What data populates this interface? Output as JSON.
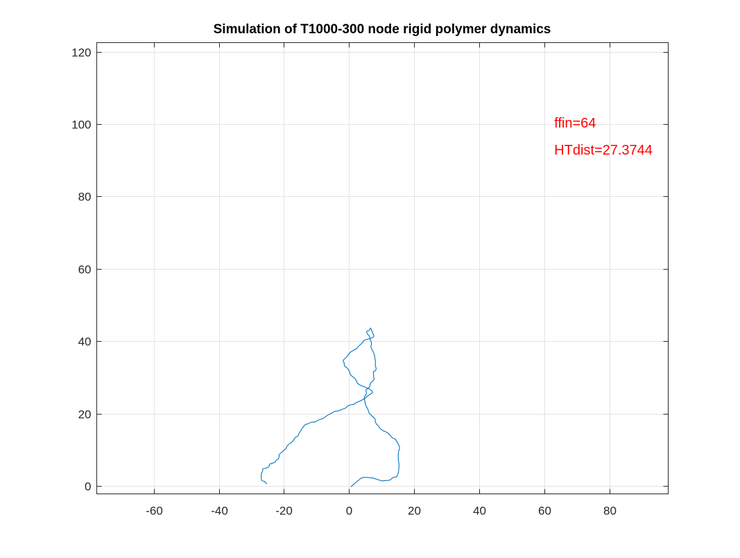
{
  "chart_data": {
    "type": "line",
    "title": "Simulation of T1000-300 node rigid polymer dynamics",
    "xlabel": "",
    "ylabel": "",
    "xlim": [
      -77.5,
      98
    ],
    "ylim": [
      -2.2,
      122.5
    ],
    "xticks": [
      -60,
      -40,
      -20,
      0,
      20,
      40,
      60,
      80
    ],
    "yticks": [
      0,
      20,
      40,
      60,
      80,
      100,
      120
    ],
    "grid": true,
    "colors": {
      "series": "#0072BD",
      "annotation": "#FF0000",
      "grid": "#E3E3E3",
      "axis": "#262626"
    },
    "annotations": [
      {
        "text": "ffin=64",
        "x": 63,
        "y": 100
      },
      {
        "text": "HTdist=27.3744",
        "x": 63,
        "y": 92.6
      }
    ],
    "series": [
      {
        "name": "",
        "x": [
          0.6,
          2.5,
          3.6,
          6,
          8.6,
          10,
          12.5,
          14.6,
          15.3,
          15.1,
          15.5,
          14.4,
          14.2,
          11.6,
          9.5,
          8.5,
          8.0,
          6.2,
          4.8,
          5.2,
          7.6,
          7.5,
          8.3,
          8.1,
          7.8,
          6.7,
          6.8,
          6.3,
          5.4,
          6.6,
          7.6,
          4.5,
          2.9,
          1.2,
          -0.2,
          -1.8,
          -1.4,
          0.2,
          1.1,
          2.3,
          3.5,
          6.2,
          7.2,
          5.1,
          3.0,
          1.6,
          -0.4,
          -2.1,
          -4.4,
          -6.7,
          -9.4,
          -11.6,
          -13.5,
          -15.1,
          -15.7,
          -17.1,
          -18.8,
          -19.6,
          -21.4,
          -21.7,
          -22.7,
          -24.4,
          -24.7,
          -26.5,
          -26.9,
          -26.8,
          -25.3
        ],
        "y": [
          -0.2,
          1.3,
          2.1,
          2.3,
          1.8,
          1.4,
          1.6,
          2.6,
          5.2,
          8.4,
          10.5,
          12.6,
          12.9,
          14.8,
          15.9,
          17.0,
          18.4,
          20.1,
          23.5,
          26.5,
          29.3,
          31.6,
          32.4,
          34.4,
          36.1,
          38.4,
          39.8,
          41.3,
          42.7,
          43.6,
          41.3,
          40.1,
          38.6,
          37.4,
          36.3,
          34.7,
          33.2,
          31.4,
          30.2,
          28.9,
          27.8,
          26.8,
          25.8,
          24.4,
          23.3,
          22.6,
          22.1,
          21.2,
          20.6,
          19.5,
          18.2,
          17.6,
          16.9,
          14.9,
          13.8,
          12.6,
          11.3,
          10.2,
          8.7,
          7.5,
          6.6,
          6.0,
          5.3,
          4.7,
          3.5,
          1.5,
          0.6
        ]
      }
    ]
  }
}
